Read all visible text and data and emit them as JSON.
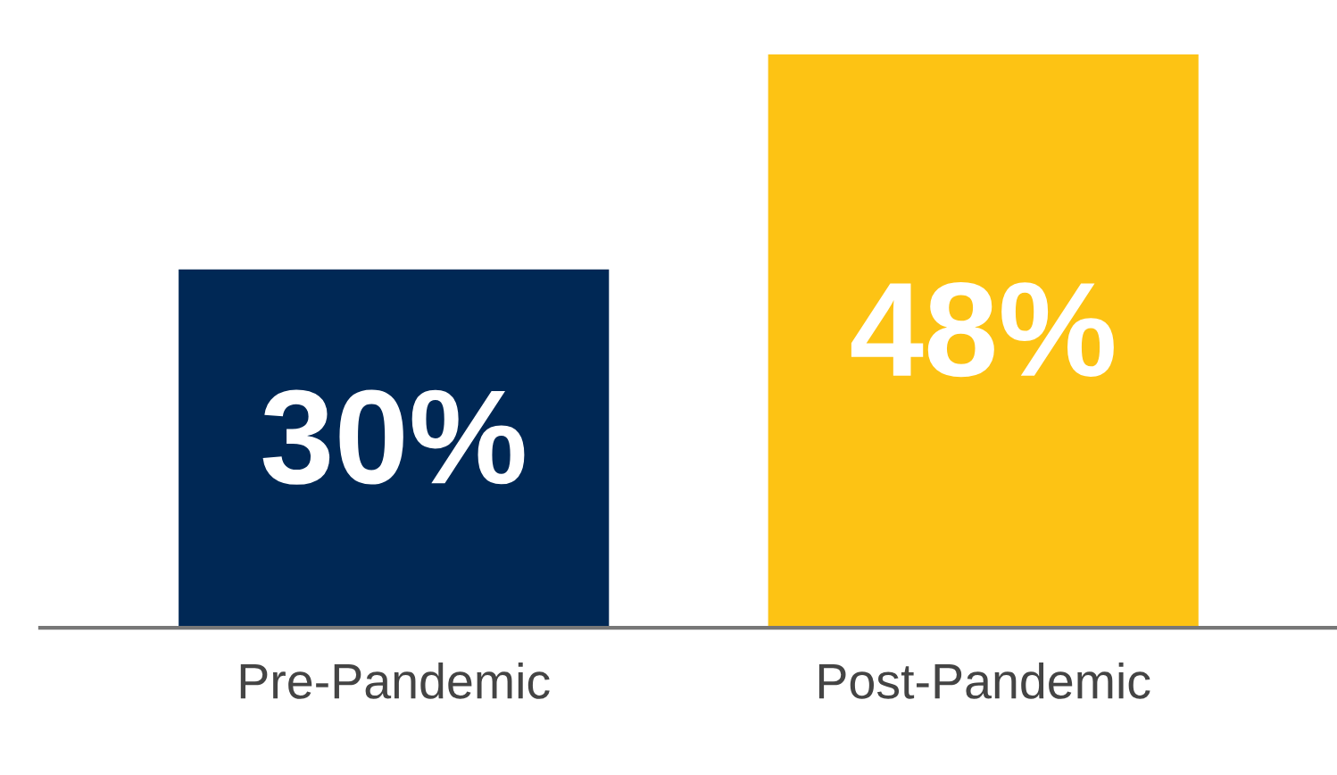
{
  "chart_data": {
    "type": "bar",
    "categories": [
      "Pre-Pandemic",
      "Post-Pandemic"
    ],
    "values": [
      30,
      48
    ],
    "colors": [
      "#002855",
      "#fdc314"
    ],
    "value_labels": [
      "30%",
      "48%"
    ],
    "tick_labels": "x",
    "grid": false,
    "legend": false
  }
}
